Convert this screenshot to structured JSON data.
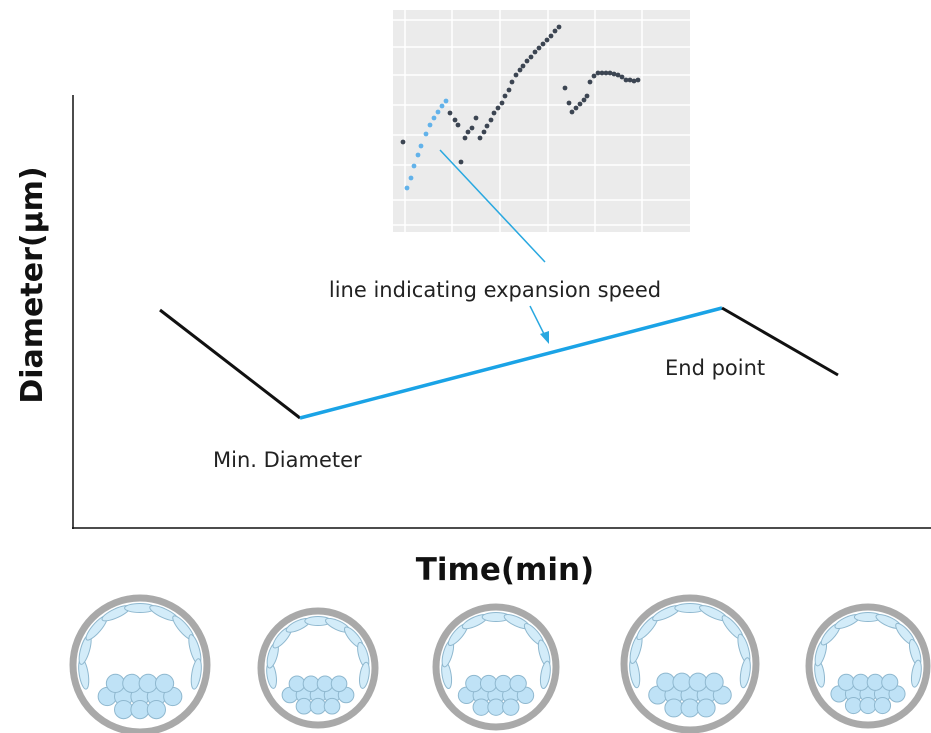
{
  "y_axis_label": "Diameter(μm)",
  "x_axis_label": "Time(min)",
  "annotations": {
    "expansion": "line indicating expansion speed",
    "min": "Min. Diameter",
    "end": "End point"
  }
}
